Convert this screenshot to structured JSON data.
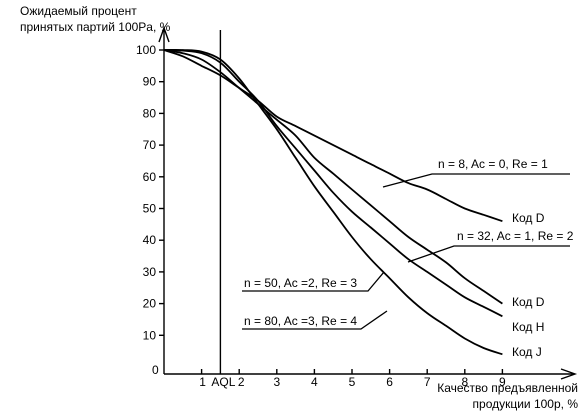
{
  "chart_data": {
    "type": "line",
    "ylabel": [
      "Ожидаемый процент",
      "принятых партий 100Pa, %"
    ],
    "xlabel": [
      "Качество предъявленной",
      "продукции 100p, %"
    ],
    "origin_label": "0",
    "xlim": [
      0,
      9.5
    ],
    "ylim": [
      0,
      105
    ],
    "x_ticks": [
      "1",
      "2",
      "3",
      "4",
      "5",
      "6",
      "7",
      "8",
      "9"
    ],
    "y_ticks": [
      "10",
      "20",
      "30",
      "40",
      "50",
      "60",
      "70",
      "80",
      "90",
      "100"
    ],
    "aql": {
      "x": 1.5,
      "label": "AQL"
    },
    "series": [
      {
        "name": "n = 8, Ac = 0, Re = 1",
        "code": "Код D",
        "points": [
          [
            0,
            100
          ],
          [
            0.5,
            98
          ],
          [
            1,
            95
          ],
          [
            1.5,
            92
          ],
          [
            2,
            88
          ],
          [
            2.5,
            84
          ],
          [
            3,
            79
          ],
          [
            3.5,
            76
          ],
          [
            4,
            73
          ],
          [
            4.5,
            70
          ],
          [
            5,
            67
          ],
          [
            5.5,
            64
          ],
          [
            6,
            61
          ],
          [
            6.5,
            58
          ],
          [
            7,
            56
          ],
          [
            7.5,
            53
          ],
          [
            8,
            50
          ],
          [
            8.5,
            48
          ],
          [
            9,
            46
          ]
        ]
      },
      {
        "name": "n = 32, Ac = 1, Re = 2",
        "code": "Код D",
        "points": [
          [
            0,
            100
          ],
          [
            0.5,
            99
          ],
          [
            1,
            97
          ],
          [
            1.5,
            93
          ],
          [
            2,
            88
          ],
          [
            2.5,
            83
          ],
          [
            3,
            78
          ],
          [
            3.5,
            73
          ],
          [
            4,
            66
          ],
          [
            4.5,
            61
          ],
          [
            5,
            56
          ],
          [
            5.5,
            51
          ],
          [
            6,
            46
          ],
          [
            6.5,
            41
          ],
          [
            7,
            37
          ],
          [
            7.5,
            33
          ],
          [
            8,
            28
          ],
          [
            8.5,
            24
          ],
          [
            9,
            20
          ]
        ]
      },
      {
        "name": "n = 50, Ac =2, Re = 3",
        "code": "Код H",
        "points": [
          [
            0,
            100
          ],
          [
            0.5,
            99.8
          ],
          [
            1,
            99
          ],
          [
            1.5,
            96
          ],
          [
            2,
            90
          ],
          [
            2.5,
            84
          ],
          [
            3,
            76
          ],
          [
            3.5,
            69
          ],
          [
            4,
            62
          ],
          [
            4.5,
            55
          ],
          [
            5,
            49
          ],
          [
            5.5,
            44
          ],
          [
            6,
            39
          ],
          [
            6.5,
            34
          ],
          [
            7,
            30
          ],
          [
            7.5,
            26
          ],
          [
            8,
            22
          ],
          [
            8.5,
            19
          ],
          [
            9,
            16
          ]
        ]
      },
      {
        "name": "n = 80, Ac =3, Re = 4",
        "code": "Код J",
        "points": [
          [
            0,
            100
          ],
          [
            0.5,
            100
          ],
          [
            1,
            99.5
          ],
          [
            1.5,
            97
          ],
          [
            2,
            91
          ],
          [
            2.5,
            83
          ],
          [
            3,
            75
          ],
          [
            3.5,
            66
          ],
          [
            4,
            57
          ],
          [
            4.5,
            49
          ],
          [
            5,
            41
          ],
          [
            5.5,
            34
          ],
          [
            6,
            28
          ],
          [
            6.5,
            22
          ],
          [
            7,
            17
          ],
          [
            7.5,
            13
          ],
          [
            8,
            9
          ],
          [
            8.5,
            6
          ],
          [
            9,
            4
          ]
        ]
      }
    ]
  }
}
